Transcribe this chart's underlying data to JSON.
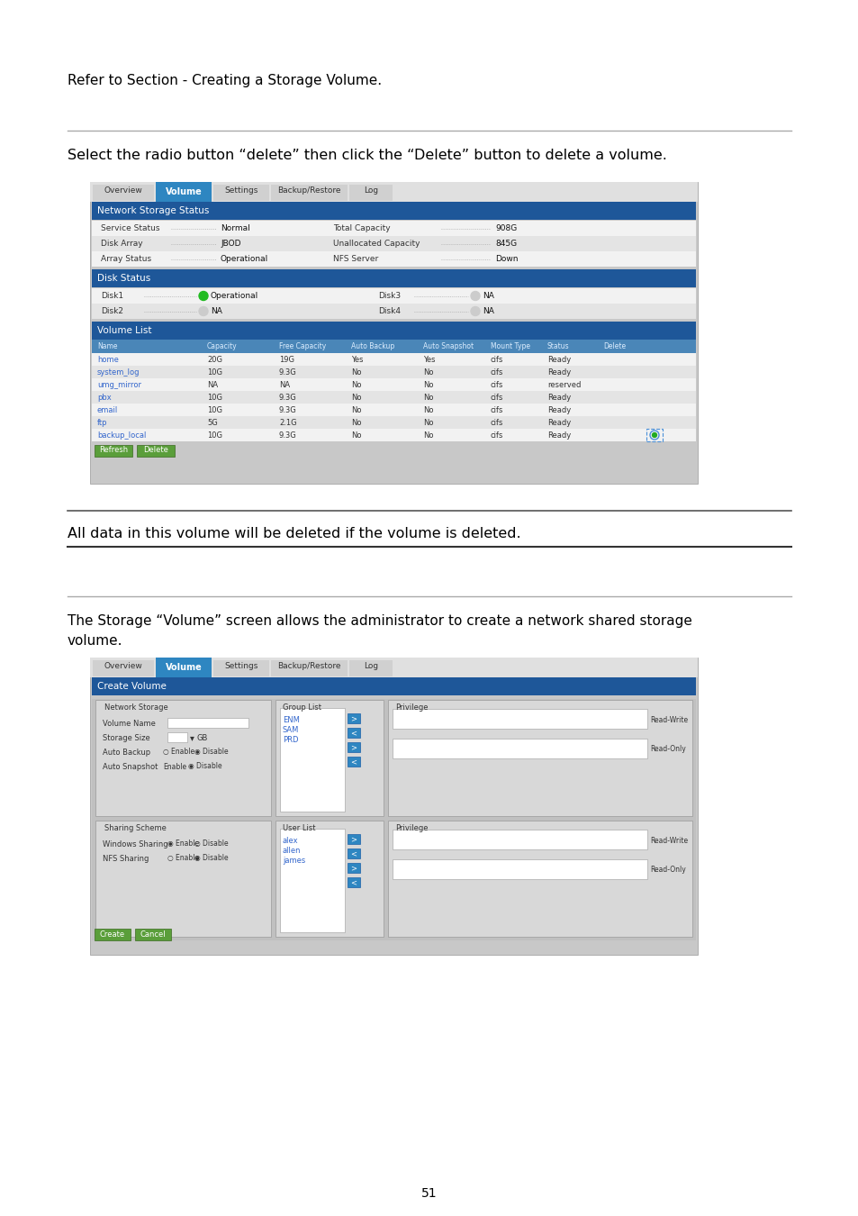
{
  "page_bg": "#ffffff",
  "text_color": "#000000",
  "page_number": "51",
  "section1_text": "Refer to Section - Creating a Storage Volume.",
  "section2_instruction": "Select the radio button “delete” then click the “Delete” button to delete a volume.",
  "warning_text": "All data in this volume will be deleted if the volume is deleted.",
  "section3_line1": "The Storage “Volume” screen allows the administrator to create a network shared storage",
  "section3_line2": "volume.",
  "nav_tabs": [
    "Overview",
    "Volume",
    "Settings",
    "Backup/Restore",
    "Log"
  ],
  "net_info": [
    [
      "Service Status",
      "Normal",
      "Total Capacity",
      "908G"
    ],
    [
      "Disk Array",
      "JBOD",
      "Unallocated Capacity",
      "845G"
    ],
    [
      "Array Status",
      "Operational",
      "NFS Server",
      "Down"
    ]
  ],
  "disk_data": [
    [
      "Disk1",
      "Operational",
      true,
      "Disk3",
      "NA",
      false
    ],
    [
      "Disk2",
      "NA",
      false,
      "Disk4",
      "NA",
      false
    ]
  ],
  "volume_cols": [
    "Name",
    "Capacity",
    "Free Capacity",
    "Auto Backup",
    "Auto Snapshot",
    "Mount Type",
    "Status",
    "Delete"
  ],
  "volume_rows": [
    [
      "home",
      "20G",
      "19G",
      "Yes",
      "Yes",
      "cifs",
      "Ready",
      ""
    ],
    [
      "system_log",
      "10G",
      "9.3G",
      "No",
      "No",
      "cifs",
      "Ready",
      ""
    ],
    [
      "umg_mirror",
      "NA",
      "NA",
      "No",
      "No",
      "cifs",
      "reserved",
      ""
    ],
    [
      "pbx",
      "10G",
      "9.3G",
      "No",
      "No",
      "cifs",
      "Ready",
      ""
    ],
    [
      "email",
      "10G",
      "9.3G",
      "No",
      "No",
      "cifs",
      "Ready",
      ""
    ],
    [
      "ftp",
      "5G",
      "2.1G",
      "No",
      "No",
      "cifs",
      "Ready",
      ""
    ],
    [
      "backup_local",
      "10G",
      "9.3G",
      "No",
      "No",
      "cifs",
      "Ready",
      "radio"
    ]
  ],
  "group_items": [
    "ENM",
    "SAM",
    "PRD"
  ],
  "user_items": [
    "alex",
    "allen",
    "james"
  ],
  "header_bg": "#1e5799",
  "tab_active_bg": "#2e86c1",
  "col_header_bg": "#4a86b8",
  "green_btn": "#5a9e3a",
  "link_color": "#3366cc",
  "row_light": "#f2f2f2",
  "row_dark": "#e4e4e4",
  "ss_bg": "#d3d3d3"
}
